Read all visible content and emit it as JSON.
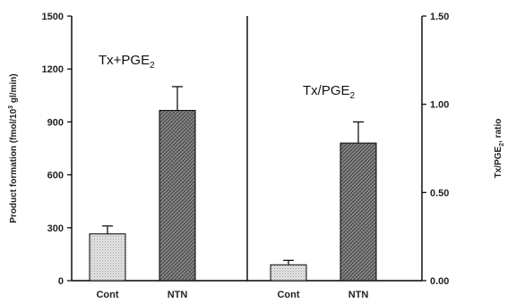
{
  "chart_data": [
    {
      "type": "bar",
      "panel": "left",
      "title": "Tx+PGE",
      "title_subscript": "2",
      "ylabel": "Product formation (fmol/10",
      "ylabel_superscript": "3",
      "ylabel_suffix": " gl/min)",
      "ylim": [
        0,
        1500
      ],
      "yticks": [
        0,
        300,
        600,
        900,
        1200,
        1500
      ],
      "categories": [
        "Cont",
        "NTN"
      ],
      "values": [
        265,
        965
      ],
      "errors": [
        45,
        135
      ],
      "fills": [
        "light-stipple",
        "dark-crosshatch"
      ]
    },
    {
      "type": "bar",
      "panel": "right",
      "title": "Tx/PGE",
      "title_subscript": "2",
      "ylabel": "Tx/PGE",
      "ylabel_subscript": "2",
      "ylabel_suffix": ", ratio",
      "ylim": [
        0,
        1.5
      ],
      "yticks": [
        "0.00",
        "0.50",
        "1.00",
        "1.50"
      ],
      "categories": [
        "Cont",
        "NTN"
      ],
      "values": [
        0.09,
        0.78
      ],
      "errors": [
        0.025,
        0.12
      ],
      "fills": [
        "light-stipple",
        "dark-crosshatch"
      ]
    }
  ]
}
